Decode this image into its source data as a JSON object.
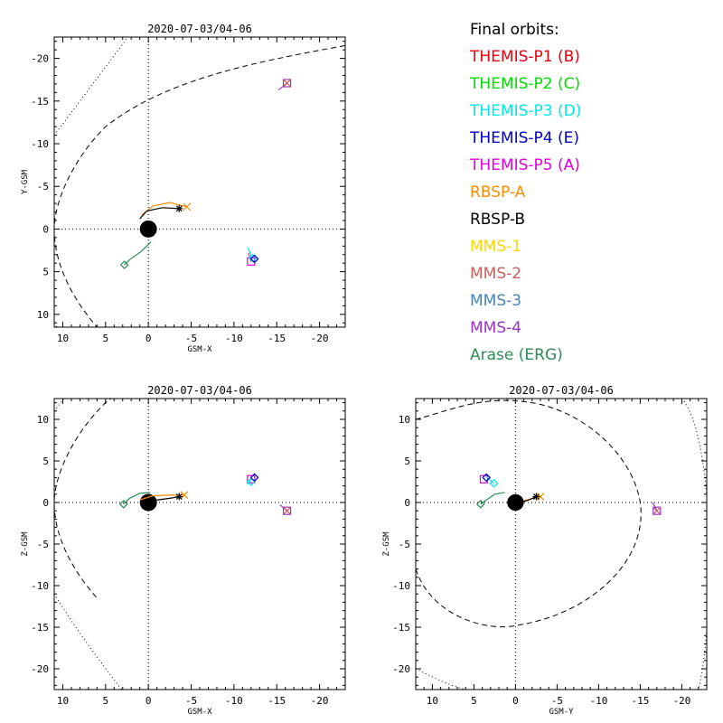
{
  "legend": {
    "title": "Final orbits:",
    "entries": [
      {
        "label": "THEMIS-P1 (B)",
        "color": "#e8000b"
      },
      {
        "label": "THEMIS-P2 (C)",
        "color": "#00e000"
      },
      {
        "label": "THEMIS-P3 (D)",
        "color": "#00e8e8"
      },
      {
        "label": "THEMIS-P4 (E)",
        "color": "#0000c8"
      },
      {
        "label": "THEMIS-P5 (A)",
        "color": "#e000e0"
      },
      {
        "label": "RBSP-A",
        "color": "#ff8c00"
      },
      {
        "label": "RBSP-B",
        "color": "#000000"
      },
      {
        "label": "MMS-1",
        "color": "#ffd700"
      },
      {
        "label": "MMS-2",
        "color": "#cd5c5c"
      },
      {
        "label": "MMS-3",
        "color": "#4682b4"
      },
      {
        "label": "MMS-4",
        "color": "#9932cc"
      },
      {
        "label": "Arase (ERG)",
        "color": "#2e8b57"
      }
    ]
  },
  "chart_data": [
    {
      "type": "scatter",
      "title": "2020-07-03/04-06",
      "xlabel": "GSM-X",
      "ylabel": "Y-GSM",
      "xlim": [
        11,
        -23
      ],
      "ylim": [
        11.5,
        -22.5
      ],
      "xticks": [
        10,
        5,
        0,
        -5,
        -10,
        -15,
        -20
      ],
      "yticks": [
        -20,
        -15,
        -10,
        -5,
        0,
        5,
        10
      ],
      "xticklabels": [
        "10",
        "5",
        "0",
        "-5",
        "-10",
        "-15",
        "-20"
      ],
      "yticklabels": [
        "-20",
        "-15",
        "-10",
        "-5",
        "0",
        "5",
        "10"
      ],
      "spacecraft": [
        {
          "name": "MMS-4",
          "track": [
            [
              -15.2,
              -16.3
            ],
            [
              -16.2,
              -17.1
            ]
          ],
          "x": -16.2,
          "y": -17.1,
          "symbol": "square"
        },
        {
          "name": "MMS-2",
          "track": [],
          "x": -16.2,
          "y": -17.1,
          "symbol": "x"
        },
        {
          "name": "THEMIS-P5 (A)",
          "track": [
            [
              -11.7,
              2.8
            ],
            [
              -12.0,
              3.8
            ]
          ],
          "x": -12.0,
          "y": 3.8,
          "symbol": "square"
        },
        {
          "name": "THEMIS-P3 (D)",
          "track": [
            [
              -11.6,
              2.2
            ],
            [
              -12.2,
              3.4
            ]
          ],
          "x": -12.2,
          "y": 3.4,
          "symbol": "diamond"
        },
        {
          "name": "THEMIS-P4 (E)",
          "track": [],
          "x": -12.4,
          "y": 3.5,
          "symbol": "diamond"
        },
        {
          "name": "RBSP-A",
          "track": [
            [
              0.8,
              -1.6
            ],
            [
              -0.5,
              -2.7
            ],
            [
              -2.5,
              -3.1
            ],
            [
              -4.5,
              -2.6
            ]
          ],
          "x": -4.5,
          "y": -2.6,
          "symbol": "x"
        },
        {
          "name": "RBSP-B",
          "track": [
            [
              1.0,
              -1.2
            ],
            [
              0.2,
              -2.1
            ],
            [
              -1.6,
              -2.5
            ],
            [
              -3.6,
              -2.4
            ]
          ],
          "x": -3.6,
          "y": -2.4,
          "symbol": "asterisk"
        },
        {
          "name": "Arase (ERG)",
          "track": [
            [
              -0.3,
              1.5
            ],
            [
              0.8,
              2.6
            ],
            [
              2.2,
              3.6
            ],
            [
              2.8,
              4.2
            ]
          ],
          "x": 2.8,
          "y": 4.2,
          "symbol": "diamond"
        }
      ],
      "earth": {
        "x": 0,
        "y": 0,
        "radius": 1
      }
    },
    {
      "type": "scatter",
      "title": "2020-07-03/04-06",
      "xlabel": "GSM-X",
      "ylabel": "Z-GSM",
      "xlim": [
        11,
        -23
      ],
      "ylim": [
        -22.5,
        12.5
      ],
      "xticks": [
        10,
        5,
        0,
        -5,
        -10,
        -15,
        -20
      ],
      "yticks": [
        -20,
        -15,
        -10,
        -5,
        0,
        5,
        10
      ],
      "xticklabels": [
        "10",
        "5",
        "0",
        "-5",
        "-10",
        "-15",
        "-20"
      ],
      "yticklabels": [
        "-20",
        "-15",
        "-10",
        "-5",
        "0",
        "5",
        "10"
      ],
      "spacecraft": [
        {
          "name": "MMS-4",
          "track": [
            [
              -15.4,
              -0.3
            ],
            [
              -16.2,
              -1.0
            ]
          ],
          "x": -16.2,
          "y": -1.0,
          "symbol": "square"
        },
        {
          "name": "MMS-2",
          "track": [],
          "x": -16.2,
          "y": -1.0,
          "symbol": "x"
        },
        {
          "name": "THEMIS-P5 (A)",
          "track": [],
          "x": -12.0,
          "y": 2.8,
          "symbol": "square"
        },
        {
          "name": "THEMIS-P3 (D)",
          "track": [
            [
              -11.6,
              2.2
            ],
            [
              -12.0,
              2.8
            ]
          ],
          "x": -12.0,
          "y": 2.5,
          "symbol": "diamond"
        },
        {
          "name": "THEMIS-P4 (E)",
          "track": [],
          "x": -12.4,
          "y": 3.0,
          "symbol": "diamond"
        },
        {
          "name": "RBSP-A",
          "track": [
            [
              1.0,
              0.3
            ],
            [
              -0.5,
              0.8
            ],
            [
              -2.5,
              0.9
            ],
            [
              -4.2,
              0.9
            ]
          ],
          "x": -4.2,
          "y": 0.9,
          "symbol": "x"
        },
        {
          "name": "RBSP-B",
          "track": [
            [
              0.8,
              0.1
            ],
            [
              -1.0,
              0.3
            ],
            [
              -2.5,
              0.5
            ],
            [
              -3.6,
              0.7
            ]
          ],
          "x": -3.6,
          "y": 0.7,
          "symbol": "asterisk"
        },
        {
          "name": "Arase (ERG)",
          "track": [
            [
              -0.2,
              1.2
            ],
            [
              1.0,
              1.1
            ],
            [
              2.2,
              0.5
            ],
            [
              2.9,
              -0.2
            ]
          ],
          "x": 2.9,
          "y": -0.2,
          "symbol": "diamond"
        }
      ],
      "earth": {
        "x": 0,
        "y": 0,
        "radius": 1
      }
    },
    {
      "type": "scatter",
      "title": "2020-07-03/04-06",
      "xlabel": "GSM-Y",
      "ylabel": "Z-GSM",
      "xlim": [
        12,
        -23
      ],
      "ylim": [
        -22.5,
        12.5
      ],
      "xticks": [
        10,
        5,
        0,
        -5,
        -10,
        -15,
        -20
      ],
      "yticks": [
        -20,
        -15,
        -10,
        -5,
        0,
        5,
        10
      ],
      "xticklabels": [
        "10",
        "5",
        "0",
        "-5",
        "-10",
        "-15",
        "-20"
      ],
      "yticklabels": [
        "-20",
        "-15",
        "-10",
        "-5",
        "0",
        "5",
        "10"
      ],
      "spacecraft": [
        {
          "name": "MMS-4",
          "track": [
            [
              -16.5,
              0.0
            ],
            [
              -17.0,
              -1.0
            ]
          ],
          "x": -17.0,
          "y": -1.0,
          "symbol": "square"
        },
        {
          "name": "MMS-2",
          "track": [],
          "x": -17.0,
          "y": -1.0,
          "symbol": "x"
        },
        {
          "name": "THEMIS-P5 (A)",
          "track": [],
          "x": 3.8,
          "y": 2.8,
          "symbol": "square"
        },
        {
          "name": "THEMIS-P3 (D)",
          "track": [
            [
              3.5,
              3.1
            ],
            [
              2.6,
              2.3
            ]
          ],
          "x": 2.6,
          "y": 2.3,
          "symbol": "diamond"
        },
        {
          "name": "THEMIS-P4 (E)",
          "track": [],
          "x": 3.5,
          "y": 3.0,
          "symbol": "diamond"
        },
        {
          "name": "RBSP-A",
          "track": [
            [
              -1.0,
              0.2
            ],
            [
              -2.0,
              0.5
            ],
            [
              -2.8,
              0.8
            ]
          ],
          "x": -3.0,
          "y": 0.7,
          "symbol": "x"
        },
        {
          "name": "RBSP-B",
          "track": [
            [
              -0.6,
              0.0
            ],
            [
              -1.6,
              0.3
            ],
            [
              -2.5,
              0.7
            ]
          ],
          "x": -2.5,
          "y": 0.7,
          "symbol": "asterisk"
        },
        {
          "name": "Arase (ERG)",
          "track": [
            [
              1.3,
              1.2
            ],
            [
              2.5,
              1.0
            ],
            [
              3.5,
              0.3
            ],
            [
              4.2,
              -0.2
            ]
          ],
          "x": 4.2,
          "y": -0.2,
          "symbol": "diamond"
        }
      ],
      "earth": {
        "x": 0,
        "y": 0,
        "radius": 1
      }
    }
  ]
}
